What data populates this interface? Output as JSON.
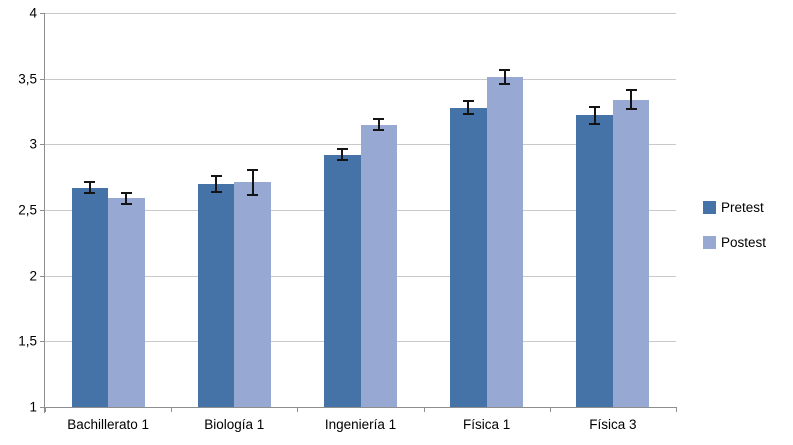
{
  "chart_data": {
    "type": "bar",
    "title": "",
    "categories": [
      "Bachillerato 1",
      "Biología 1",
      "Ingeniería 1",
      "Física 1",
      "Física 3"
    ],
    "series": [
      {
        "name": "Pretest",
        "color": "#4573A7",
        "values": [
          2.67,
          2.7,
          2.92,
          3.28,
          3.22
        ],
        "errors": [
          0.05,
          0.07,
          0.05,
          0.06,
          0.07
        ]
      },
      {
        "name": "Postest",
        "color": "#97A9D2",
        "values": [
          2.59,
          2.71,
          3.15,
          3.51,
          3.34
        ],
        "errors": [
          0.05,
          0.1,
          0.05,
          0.06,
          0.08
        ]
      }
    ],
    "y_axis": {
      "min": 1,
      "max": 4,
      "tick_step": 0.5,
      "tick_labels": [
        "1",
        "1,5",
        "2",
        "2,5",
        "3",
        "3,5",
        "4"
      ]
    },
    "x_axis": {
      "label": ""
    },
    "error_bars": true,
    "grid": true,
    "legend_position": "right",
    "decimal_separator": ","
  },
  "colors": {
    "background": "#FFFFFF",
    "gridline": "#C9C9C9",
    "axis": "#8E8E8E",
    "error_bar": "#141414",
    "text": "#000000"
  }
}
